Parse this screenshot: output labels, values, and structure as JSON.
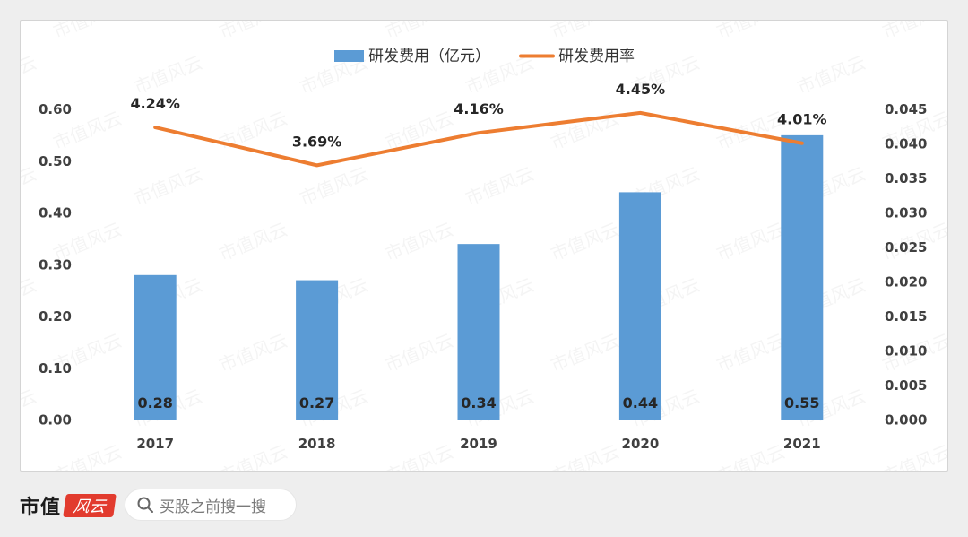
{
  "chart_data": {
    "type": "bar",
    "categories": [
      "2017",
      "2018",
      "2019",
      "2020",
      "2021"
    ],
    "series": [
      {
        "name": "研发费用（亿元）",
        "type": "bar",
        "axis": "left",
        "color": "#5b9bd5",
        "values": [
          0.28,
          0.27,
          0.34,
          0.44,
          0.55
        ],
        "data_labels": [
          "0.28",
          "0.27",
          "0.34",
          "0.44",
          "0.55"
        ]
      },
      {
        "name": "研发费用率",
        "type": "line",
        "axis": "right",
        "color": "#ed7d31",
        "values": [
          0.0424,
          0.0369,
          0.0416,
          0.0445,
          0.0401
        ],
        "data_labels": [
          "4.24%",
          "3.69%",
          "4.16%",
          "4.45%",
          "4.01%"
        ]
      }
    ],
    "y_left": {
      "ylim": [
        0,
        0.6
      ],
      "ticks": [
        "0.00",
        "0.10",
        "0.20",
        "0.30",
        "0.40",
        "0.50",
        "0.60"
      ]
    },
    "y_right": {
      "ylim": [
        0,
        0.045
      ],
      "ticks": [
        "0.000",
        "0.005",
        "0.010",
        "0.015",
        "0.020",
        "0.025",
        "0.030",
        "0.035",
        "0.040",
        "0.045"
      ]
    },
    "legend_position": "top-center",
    "grid": false
  },
  "watermark": "市值风云",
  "footer": {
    "brand": "市值",
    "search_placeholder": "买股之前搜一搜",
    "search_icon": "search-icon"
  }
}
